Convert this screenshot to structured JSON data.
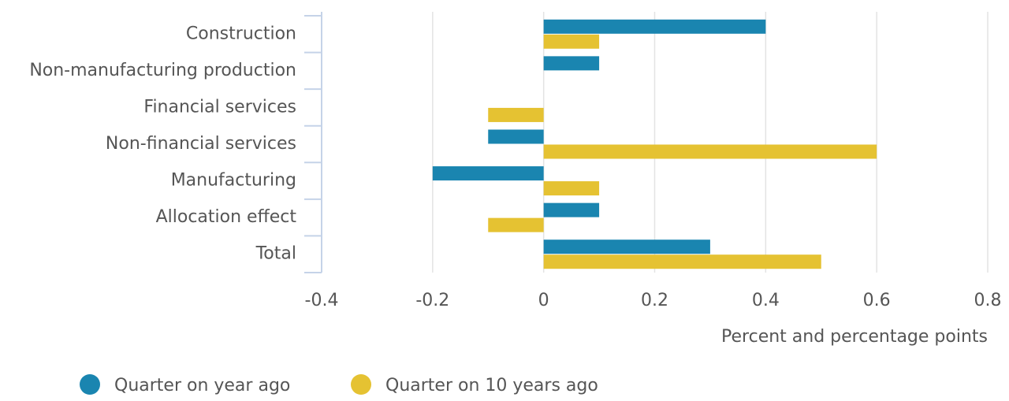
{
  "chart_data": {
    "type": "hbar",
    "categories": [
      "Construction",
      "Non-manufacturing production",
      "Financial services",
      "Non-financial services",
      "Manufacturing",
      "Allocation effect",
      "Total"
    ],
    "series": [
      {
        "name": "Quarter on year ago",
        "color": "#1a85b0",
        "values": [
          0.4,
          0.1,
          0,
          -0.1,
          -0.2,
          0.1,
          0.3
        ]
      },
      {
        "name": "Quarter on 10 years ago",
        "color": "#e5c232",
        "values": [
          0.1,
          0,
          -0.1,
          0.6,
          0.1,
          -0.1,
          0.5
        ]
      }
    ],
    "xlim": [
      -0.4,
      0.8
    ],
    "xticks": [
      -0.4,
      -0.2,
      0,
      0.2,
      0.4,
      0.6,
      0.8
    ],
    "xlabel": "Percent and percentage points",
    "grid": true
  }
}
